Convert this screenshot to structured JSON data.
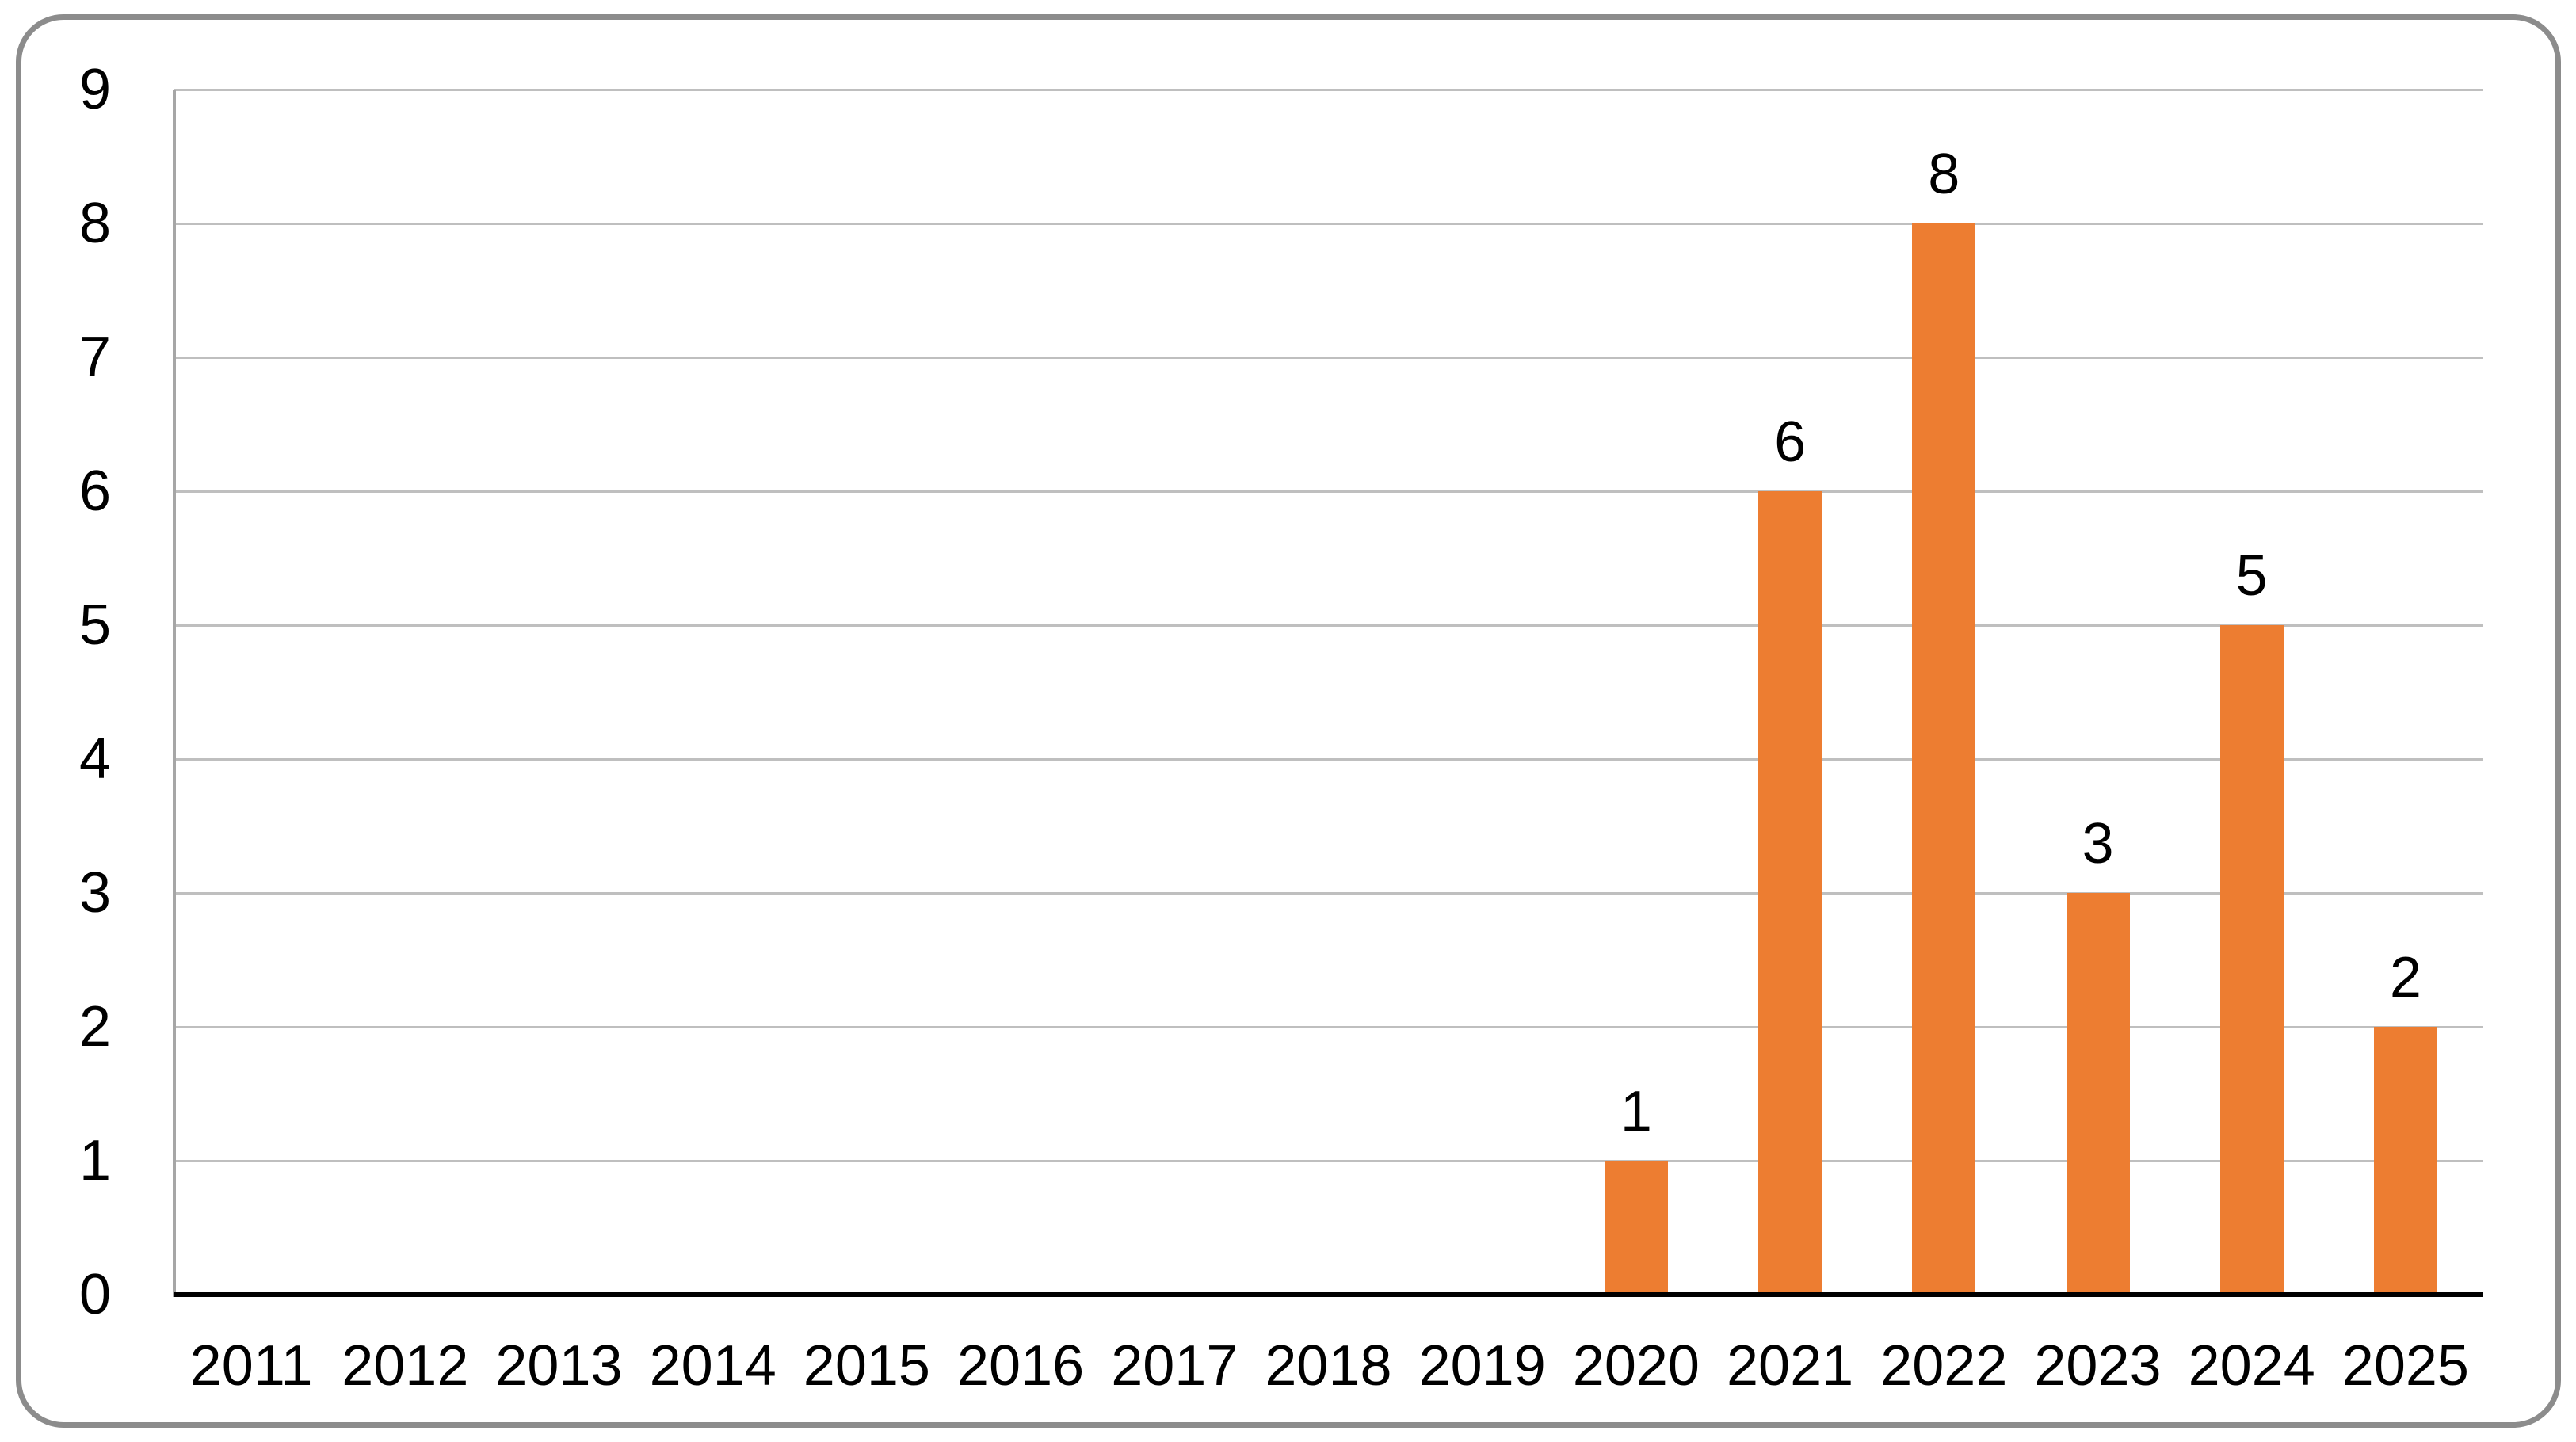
{
  "chart_data": {
    "type": "bar",
    "title": "",
    "xlabel": "",
    "ylabel": "",
    "categories": [
      "2011",
      "2012",
      "2013",
      "2014",
      "2015",
      "2016",
      "2017",
      "2018",
      "2019",
      "2020",
      "2021",
      "2022",
      "2023",
      "2024",
      "2025"
    ],
    "values": [
      0,
      0,
      0,
      0,
      0,
      0,
      0,
      0,
      0,
      1,
      6,
      8,
      3,
      5,
      2
    ],
    "data_labels": [
      "",
      "",
      "",
      "",
      "",
      "",
      "",
      "",
      "",
      "1",
      "6",
      "8",
      "3",
      "5",
      "2"
    ],
    "yticks": [
      "0",
      "1",
      "2",
      "3",
      "4",
      "5",
      "6",
      "7",
      "8",
      "9"
    ],
    "ylim": [
      0,
      9
    ],
    "ytick_step": 1,
    "grid": "horizontal",
    "legend": "none",
    "colors": {
      "bar": "#ED7D31",
      "gridline": "#BFBFBF",
      "y_axis_line": "#A6A6A6",
      "baseline": "#000000",
      "frame_border": "#8C8C8C",
      "label_text": "#000000",
      "background": "#FFFFFF"
    }
  }
}
